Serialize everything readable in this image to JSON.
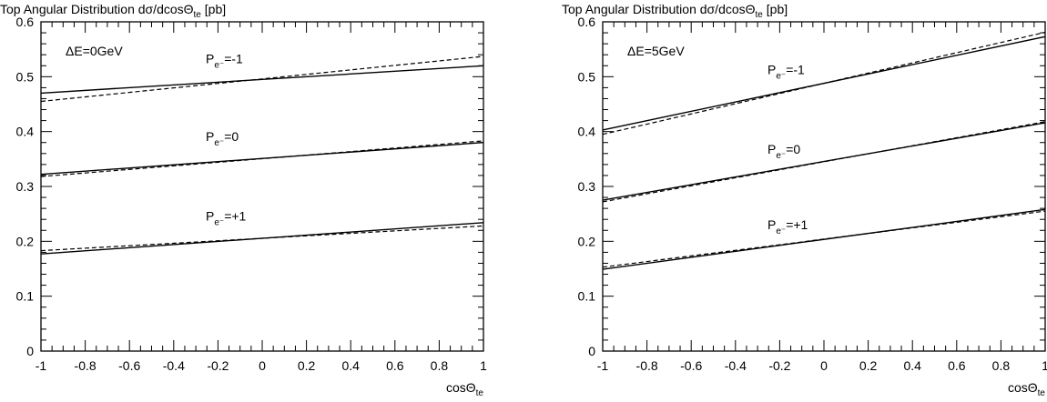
{
  "chart_data": [
    {
      "type": "line",
      "title_main": "Top Angular Distribution dσ/dcosΘ",
      "title_sub": "te",
      "title_unit": " [pb]",
      "xlabel_main": "cosΘ",
      "xlabel_sub": "te",
      "annotation": "ΔE=0GeV",
      "xlim": [
        -1,
        1
      ],
      "ylim": [
        0,
        0.6
      ],
      "x_ticks": [
        -1,
        -0.8,
        -0.6,
        -0.4,
        -0.2,
        0,
        0.2,
        0.4,
        0.6,
        0.8,
        1
      ],
      "x_tick_labels": [
        "-1",
        "-0.8",
        "-0.6",
        "-0.4",
        "-0.2",
        "0",
        "0.2",
        "0.4",
        "0.6",
        "0.8",
        "1"
      ],
      "y_ticks": [
        0,
        0.1,
        0.2,
        0.3,
        0.4,
        0.5,
        0.6
      ],
      "y_tick_labels": [
        "0",
        "0.1",
        "0.2",
        "0.3",
        "0.4",
        "0.5",
        "0.6"
      ],
      "series": [
        {
          "name": "P=-1",
          "style": "solid",
          "x": [
            -1,
            1
          ],
          "y": [
            0.47,
            0.52
          ]
        },
        {
          "name": "P=-1",
          "style": "dashed",
          "x": [
            -1,
            1
          ],
          "y": [
            0.455,
            0.537
          ]
        },
        {
          "name": "P=0",
          "style": "solid",
          "x": [
            -1,
            1
          ],
          "y": [
            0.322,
            0.38
          ]
        },
        {
          "name": "P=0",
          "style": "dashed",
          "x": [
            -1,
            1
          ],
          "y": [
            0.318,
            0.383
          ]
        },
        {
          "name": "P=+1",
          "style": "solid",
          "x": [
            -1,
            1
          ],
          "y": [
            0.177,
            0.234
          ]
        },
        {
          "name": "P=+1",
          "style": "dashed",
          "x": [
            -1,
            1
          ],
          "y": [
            0.183,
            0.228
          ]
        }
      ],
      "curve_labels": [
        {
          "base": "P",
          "sub": "e⁻",
          "value": "=-1",
          "x": 0,
          "y": 0.525
        },
        {
          "base": "P",
          "sub": "e⁻",
          "value": "=0",
          "x": 0,
          "y": 0.383
        },
        {
          "base": "P",
          "sub": "e⁻",
          "value": "=+1",
          "x": 0,
          "y": 0.238
        }
      ]
    },
    {
      "type": "line",
      "title_main": "Top Angular Distribution dσ/dcosΘ",
      "title_sub": "te",
      "title_unit": " [pb]",
      "xlabel_main": "cosΘ",
      "xlabel_sub": "te",
      "annotation": "ΔE=5GeV",
      "xlim": [
        -1,
        1
      ],
      "ylim": [
        0,
        0.6
      ],
      "x_ticks": [
        -1,
        -0.8,
        -0.6,
        -0.4,
        -0.2,
        0,
        0.2,
        0.4,
        0.6,
        0.8,
        1
      ],
      "x_tick_labels": [
        "-1",
        "-0.8",
        "-0.6",
        "-0.4",
        "-0.2",
        "0",
        "0.2",
        "0.4",
        "0.6",
        "0.8",
        "1"
      ],
      "y_ticks": [
        0,
        0.1,
        0.2,
        0.3,
        0.4,
        0.5,
        0.6
      ],
      "y_tick_labels": [
        "0",
        "0.1",
        "0.2",
        "0.3",
        "0.4",
        "0.5",
        "0.6"
      ],
      "series": [
        {
          "name": "P=-1",
          "style": "solid",
          "x": [
            -1,
            1
          ],
          "y": [
            0.403,
            0.573
          ]
        },
        {
          "name": "P=-1",
          "style": "dashed",
          "x": [
            -1,
            1
          ],
          "y": [
            0.395,
            0.581
          ]
        },
        {
          "name": "P=0",
          "style": "solid",
          "x": [
            -1,
            1
          ],
          "y": [
            0.275,
            0.416
          ]
        },
        {
          "name": "P=0",
          "style": "dashed",
          "x": [
            -1,
            1
          ],
          "y": [
            0.272,
            0.418
          ]
        },
        {
          "name": "P=+1",
          "style": "solid",
          "x": [
            -1,
            1
          ],
          "y": [
            0.149,
            0.258
          ]
        },
        {
          "name": "P=+1",
          "style": "dashed",
          "x": [
            -1,
            1
          ],
          "y": [
            0.153,
            0.255
          ]
        }
      ],
      "curve_labels": [
        {
          "base": "P",
          "sub": "e⁻",
          "value": "=-1",
          "x": 0,
          "y": 0.505
        },
        {
          "base": "P",
          "sub": "e⁻",
          "value": "=0",
          "x": 0,
          "y": 0.36
        },
        {
          "base": "P",
          "sub": "e⁻",
          "value": "=+1",
          "x": 0,
          "y": 0.222
        }
      ]
    }
  ]
}
